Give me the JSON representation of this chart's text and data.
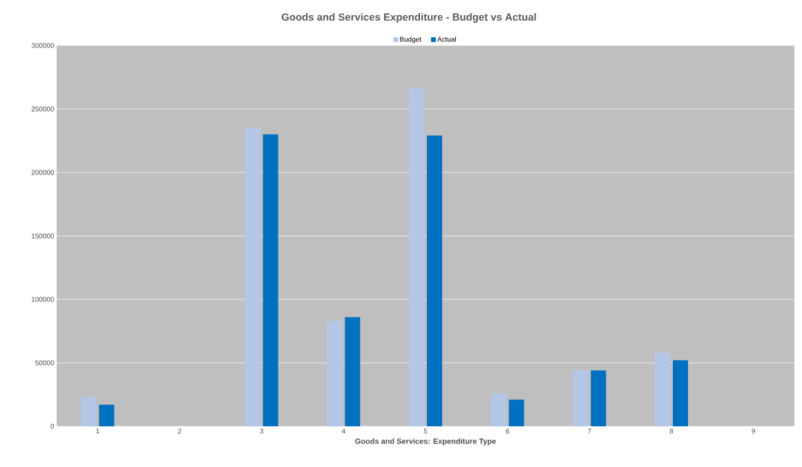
{
  "chart_data": {
    "type": "bar",
    "title": "Goods and Services Expenditure - Budget vs Actual",
    "xlabel": "Goods and Services: Expenditure Type",
    "categories": [
      "1",
      "2",
      "3",
      "4",
      "5",
      "6",
      "7",
      "8",
      "9"
    ],
    "series": [
      {
        "name": "Budget",
        "color": "#b4c7e7",
        "values": [
          23000,
          null,
          235000,
          83000,
          266000,
          26000,
          44000,
          58000,
          null
        ]
      },
      {
        "name": "Actual",
        "color": "#0070c0",
        "values": [
          17000,
          null,
          230000,
          86000,
          229000,
          21000,
          44000,
          52000,
          null
        ]
      }
    ],
    "ylim": [
      0,
      300000
    ],
    "yticks": [
      0,
      50000,
      100000,
      150000,
      200000,
      250000,
      300000
    ],
    "grid": "y",
    "legend": "top"
  }
}
